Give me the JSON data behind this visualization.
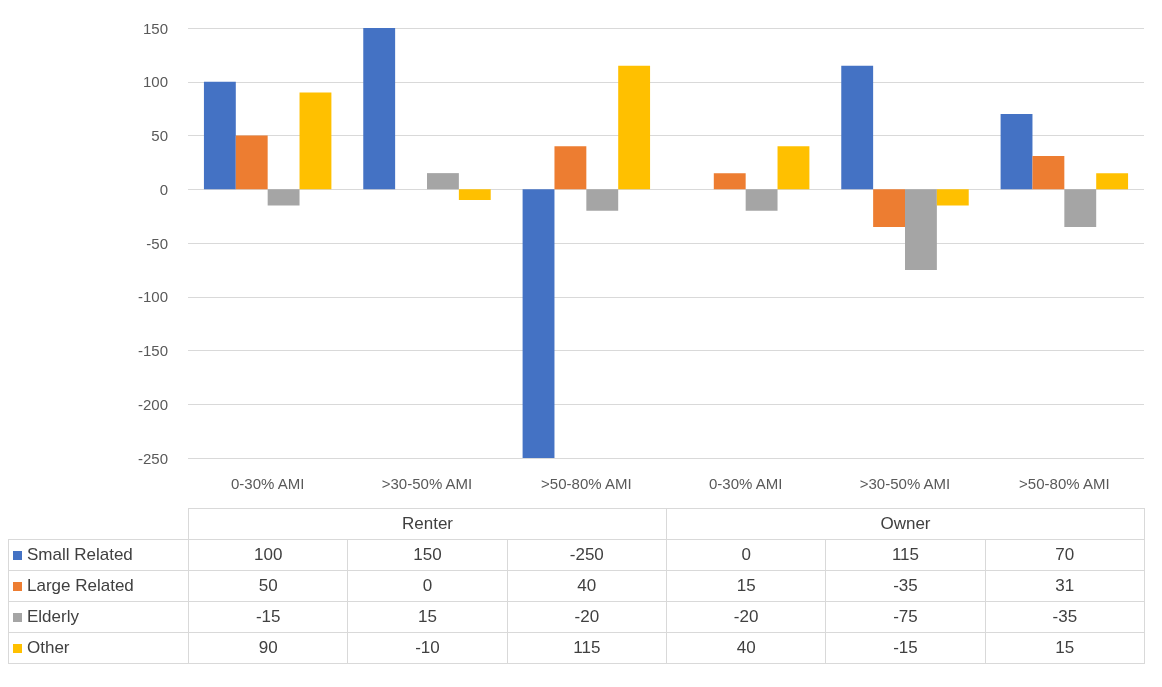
{
  "chart_data": {
    "type": "bar",
    "categories": [
      "0-30% AMI",
      ">30-50% AMI",
      ">50-80% AMI",
      "0-30% AMI",
      ">30-50% AMI",
      ">50-80% AMI"
    ],
    "annotations": [
      "Renter",
      "Owner"
    ],
    "series": [
      {
        "name": "Small Related",
        "color": "#4472c4",
        "values": [
          100,
          150,
          -250,
          0,
          115,
          70
        ]
      },
      {
        "name": "Large Related",
        "color": "#ed7d31",
        "values": [
          50,
          0,
          40,
          15,
          -35,
          31
        ]
      },
      {
        "name": "Elderly",
        "color": "#a5a5a5",
        "values": [
          -15,
          15,
          -20,
          -20,
          -75,
          -35
        ]
      },
      {
        "name": "Other",
        "color": "#ffc000",
        "values": [
          90,
          -10,
          115,
          40,
          -15,
          15
        ]
      }
    ],
    "ylim": [
      -250,
      150
    ],
    "yticks": [
      -250,
      -200,
      -150,
      -100,
      -50,
      0,
      50,
      100,
      150
    ],
    "grid": "y",
    "data_labels": true,
    "legend": "bottom left"
  }
}
